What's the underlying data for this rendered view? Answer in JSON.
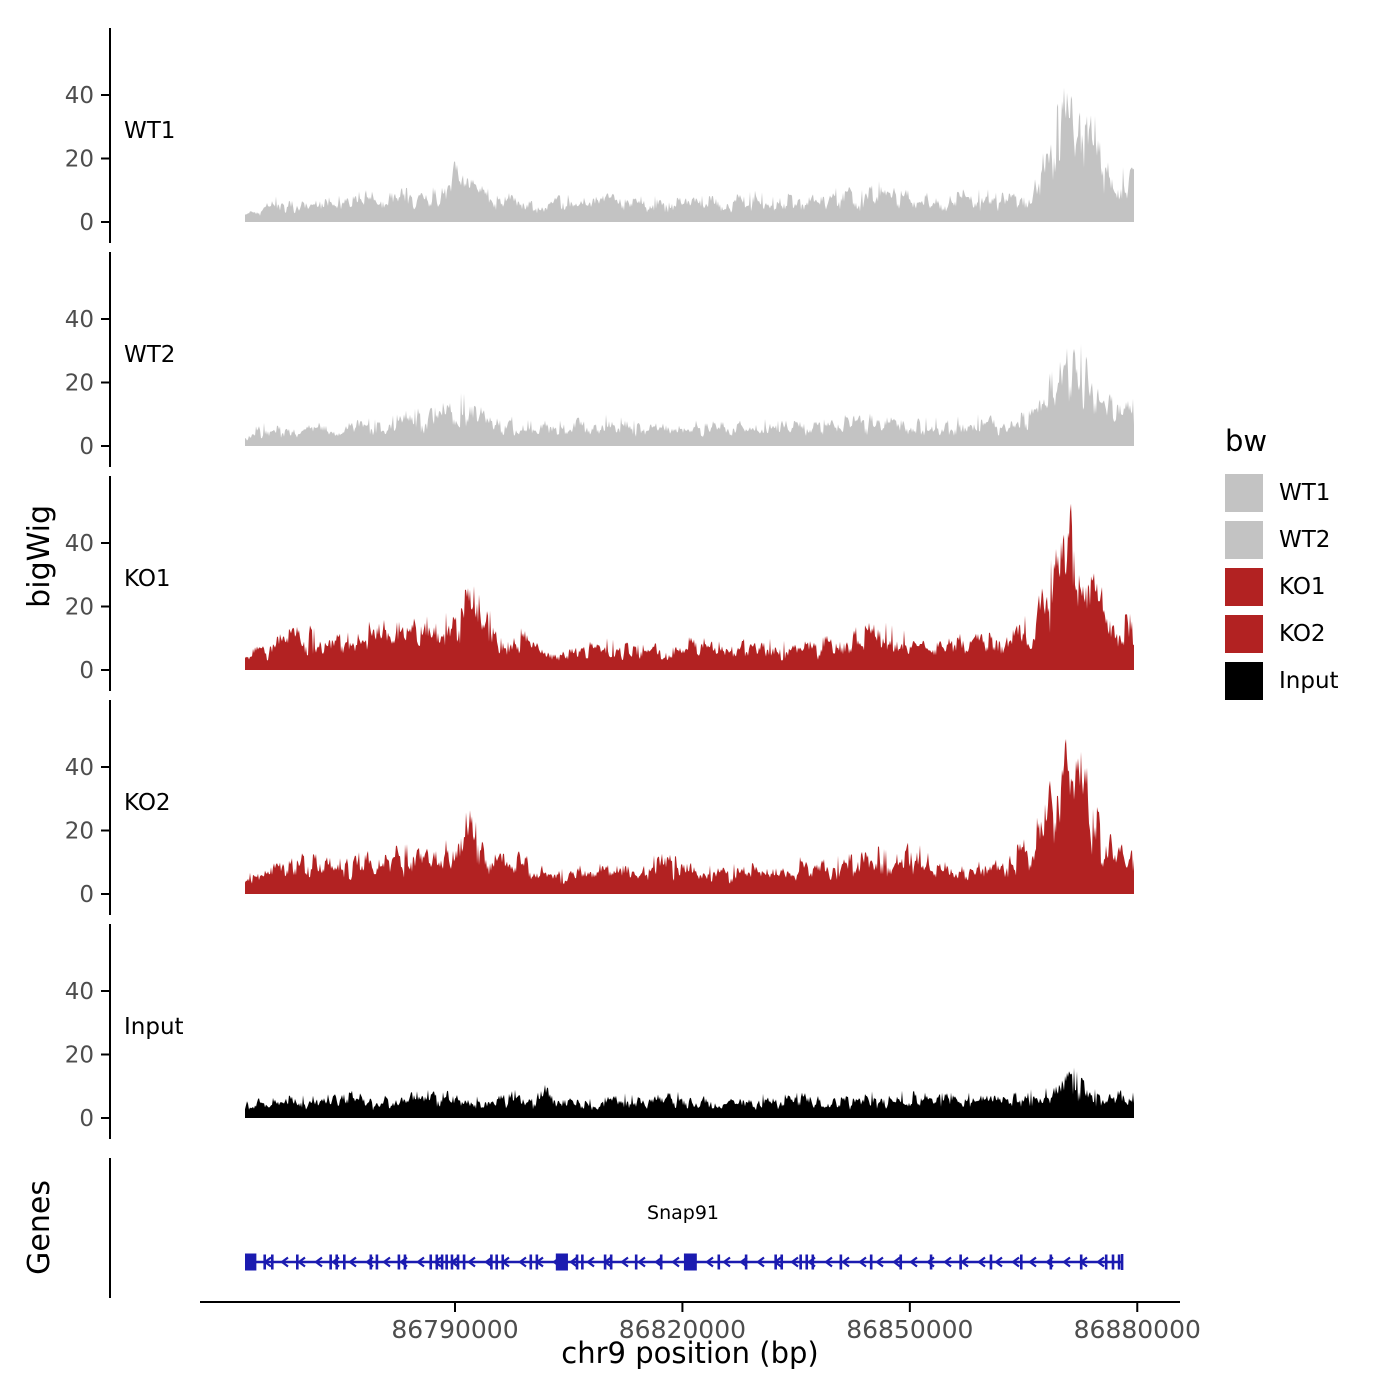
{
  "figure": {
    "ylabel_tracks": "bigWig",
    "ylabel_genes": "Genes",
    "xlabel": "chr9 position (bp)"
  },
  "legend": {
    "title": "bw",
    "entries": [
      {
        "label": "WT1",
        "color": "#c3c3c3"
      },
      {
        "label": "WT2",
        "color": "#c3c3c3"
      },
      {
        "label": "KO1",
        "color": "#b22222"
      },
      {
        "label": "KO2",
        "color": "#b22222"
      },
      {
        "label": "Input",
        "color": "#000000"
      }
    ]
  },
  "chart_data": {
    "type": "area",
    "title": "",
    "xlabel": "chr9 position (bp)",
    "ylabel": "bigWig",
    "x_range_bp": [
      86762300,
      86879700
    ],
    "x_ticks_bp": [
      86790000,
      86820000,
      86850000,
      86880000
    ],
    "x_tick_labels": [
      "86790000",
      "86820000",
      "86850000",
      "86880000"
    ],
    "y_ticks": [
      0,
      20,
      40
    ],
    "ylim": [
      0,
      57
    ],
    "axis_text_color": "#4d4d4d",
    "tracks": [
      {
        "name": "WT1",
        "color": "#c3c3c3",
        "max_value": 50,
        "envelope": [
          3,
          6,
          8,
          9,
          8,
          9,
          8,
          9,
          10,
          9,
          10,
          11,
          10,
          12,
          21,
          14,
          11,
          10,
          9,
          8,
          8,
          9,
          8,
          8,
          9,
          8,
          9,
          8,
          9,
          8,
          8,
          9,
          8,
          9,
          10,
          8,
          9,
          8,
          9,
          10,
          12,
          10,
          13,
          11,
          10,
          9,
          10,
          9,
          11,
          10,
          11,
          12,
          14,
          22,
          38,
          50,
          40,
          24,
          17,
          18
        ]
      },
      {
        "name": "WT2",
        "color": "#c3c3c3",
        "max_value": 36,
        "envelope": [
          4,
          7,
          8,
          8,
          7,
          8,
          7,
          8,
          9,
          8,
          10,
          12,
          11,
          13,
          17,
          16,
          13,
          10,
          9,
          8,
          8,
          8,
          9,
          8,
          10,
          9,
          8,
          8,
          8,
          8,
          8,
          9,
          8,
          8,
          9,
          8,
          8,
          9,
          8,
          9,
          11,
          10,
          11,
          10,
          9,
          9,
          9,
          9,
          10,
          10,
          10,
          11,
          13,
          20,
          30,
          36,
          28,
          18,
          14,
          15
        ]
      },
      {
        "name": "KO1",
        "color": "#b22222",
        "max_value": 54,
        "envelope": [
          5,
          8,
          10,
          14,
          15,
          12,
          11,
          13,
          15,
          16,
          15,
          16,
          17,
          16,
          22,
          28,
          20,
          15,
          16,
          12,
          8,
          7,
          8,
          9,
          10,
          9,
          8,
          8,
          9,
          10,
          11,
          9,
          9,
          10,
          9,
          10,
          9,
          10,
          10,
          11,
          13,
          14,
          16,
          14,
          12,
          10,
          10,
          11,
          12,
          13,
          13,
          14,
          18,
          26,
          44,
          54,
          44,
          26,
          17,
          18
        ]
      },
      {
        "name": "KO2",
        "color": "#b22222",
        "max_value": 56,
        "envelope": [
          6,
          8,
          11,
          13,
          14,
          12,
          11,
          12,
          14,
          13,
          15,
          16,
          15,
          16,
          19,
          29,
          21,
          15,
          14,
          11,
          8,
          8,
          9,
          9,
          10,
          9,
          9,
          12,
          13,
          11,
          9,
          9,
          10,
          9,
          10,
          11,
          10,
          12,
          11,
          11,
          14,
          13,
          15,
          13,
          21,
          14,
          11,
          10,
          11,
          12,
          13,
          14,
          19,
          28,
          46,
          56,
          40,
          20,
          22,
          20
        ]
      },
      {
        "name": "Input",
        "color": "#000000",
        "max_value": 16,
        "envelope": [
          5,
          7,
          7,
          8,
          7,
          7,
          8,
          9,
          7,
          8,
          7,
          8,
          9,
          8,
          9,
          8,
          7,
          8,
          9,
          8,
          11,
          8,
          7,
          6,
          7,
          8,
          7,
          8,
          9,
          8,
          7,
          8,
          7,
          8,
          8,
          7,
          8,
          8,
          7,
          8,
          8,
          9,
          8,
          8,
          9,
          8,
          8,
          8,
          8,
          8,
          8,
          8,
          9,
          9,
          12,
          16,
          10,
          8,
          9,
          8
        ]
      }
    ],
    "genes_track": {
      "label": "Genes",
      "gene": {
        "name": "Snap91",
        "strand": "-",
        "color": "#1b1bb0",
        "start_bp": 86762300,
        "end_bp": 86878000,
        "large_exons_bp": [
          [
            86762300,
            1500
          ],
          [
            86803300,
            1600
          ],
          [
            86820200,
            1700
          ]
        ],
        "exon_marks_bp": [
          86764900,
          86765900,
          86769200,
          86773600,
          86774400,
          86775400,
          86778900,
          86779700,
          86782600,
          86783400,
          86786800,
          86787600,
          86788300,
          86788900,
          86789600,
          86790400,
          86791200,
          86794800,
          86795500,
          86796300,
          86800000,
          86800800,
          86806100,
          86806800,
          86809800,
          86810600,
          86813900,
          86817200,
          86824800,
          86828400,
          86832300,
          86833100,
          86835600,
          86836400,
          86837200,
          86840900,
          86844900,
          86848800,
          86852800,
          86856700,
          86860700,
          86864700,
          86868600,
          86872600,
          86875900,
          86876800,
          86877600
        ]
      }
    }
  }
}
